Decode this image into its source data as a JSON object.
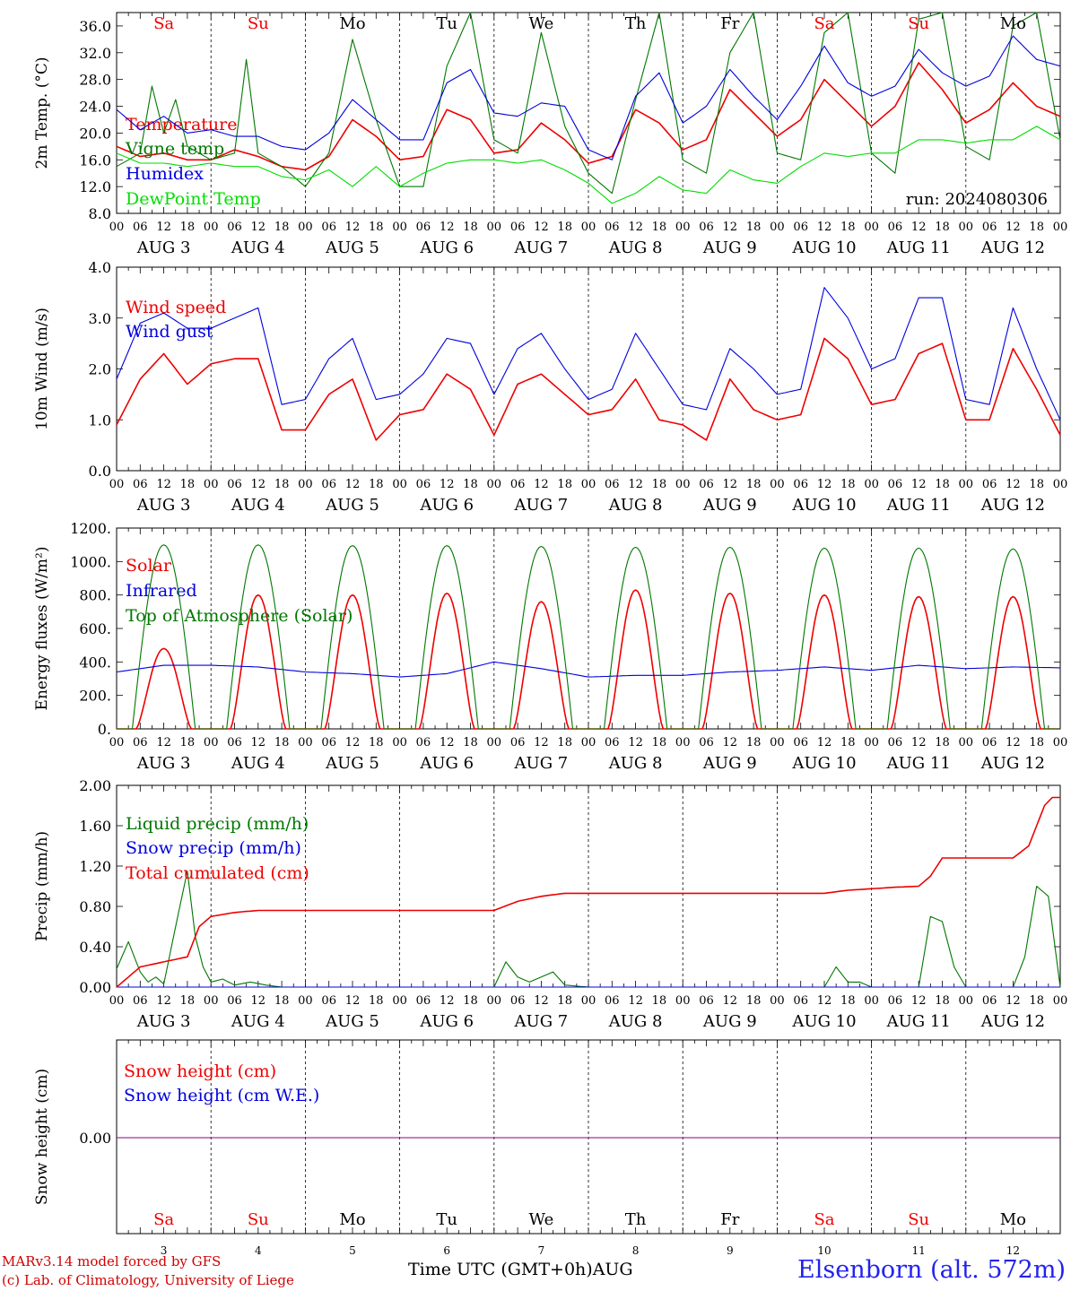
{
  "colors": {
    "red": "#ee0000",
    "green": "#007700",
    "blue": "#0000dd",
    "lightgreen": "#00dd00",
    "purple": "#880088",
    "black": "#000000"
  },
  "days": [
    {
      "name": "Sa",
      "color": "#ee0000",
      "label": "AUG  3",
      "num": "3"
    },
    {
      "name": "Su",
      "color": "#ee0000",
      "label": "AUG  4",
      "num": "4"
    },
    {
      "name": "Mo",
      "color": "#000000",
      "label": "AUG  5",
      "num": "5"
    },
    {
      "name": "Tu",
      "color": "#000000",
      "label": "AUG  6",
      "num": "6"
    },
    {
      "name": "We",
      "color": "#000000",
      "label": "AUG  7",
      "num": "7"
    },
    {
      "name": "Th",
      "color": "#000000",
      "label": "AUG  8",
      "num": "8"
    },
    {
      "name": "Fr",
      "color": "#000000",
      "label": "AUG  9",
      "num": "9"
    },
    {
      "name": "Sa",
      "color": "#ee0000",
      "label": "AUG 10",
      "num": "10"
    },
    {
      "name": "Su",
      "color": "#ee0000",
      "label": "AUG 11",
      "num": "11"
    },
    {
      "name": "Mo",
      "color": "#000000",
      "label": "AUG 12",
      "num": "12"
    }
  ],
  "hour_ticks": [
    "00",
    "06",
    "12",
    "18"
  ],
  "final_hour_tick": "00",
  "footer": {
    "model": "MARv3.14 model forced by GFS",
    "copyright": "(c) Lab. of Climatology, University of Liege",
    "xlabel": "Time UTC (GMT+0h)",
    "xunit": "AUG",
    "station": "Elsenborn (alt. 572m)"
  },
  "chart_data": [
    {
      "type": "line",
      "ylabel": "2m Temp. (°C)",
      "ylim": [
        8,
        38
      ],
      "yticks": [
        "8.0",
        "12.0",
        "16.0",
        "20.0",
        "24.0",
        "28.0",
        "32.0",
        "36.0"
      ],
      "annotation": "run: 2024080306",
      "x_unit": "hours since AUG 3 00 UTC",
      "series": [
        {
          "name": "Temperature",
          "color": "#ee0000",
          "x": [
            0,
            6,
            12,
            18,
            24,
            30,
            36,
            42,
            48,
            54,
            60,
            66,
            72,
            78,
            84,
            90,
            96,
            102,
            108,
            114,
            120,
            126,
            132,
            138,
            144,
            150,
            156,
            162,
            168,
            174,
            180,
            186,
            192,
            198,
            204,
            210,
            216,
            222,
            228,
            234,
            240
          ],
          "y": [
            18,
            16.5,
            17,
            16,
            16,
            17.5,
            16.5,
            15,
            14.5,
            16.5,
            22,
            19.5,
            16,
            16.5,
            23.5,
            22,
            17,
            17.5,
            21.5,
            19,
            15.5,
            16.5,
            23.5,
            21.5,
            17.5,
            19,
            26.5,
            23,
            19.5,
            22,
            28,
            24.5,
            21,
            24,
            30.5,
            26.5,
            21.5,
            23.5,
            27.5,
            24,
            22.5
          ]
        },
        {
          "name": "Vigne temp",
          "color": "#007700",
          "x": [
            0,
            6,
            9,
            12,
            15,
            18,
            24,
            30,
            33,
            36,
            42,
            48,
            54,
            60,
            66,
            72,
            78,
            84,
            90,
            96,
            102,
            108,
            114,
            120,
            126,
            132,
            138,
            144,
            150,
            156,
            162,
            168,
            174,
            180,
            186,
            192,
            198,
            204,
            210,
            216,
            222,
            228,
            234,
            240
          ],
          "y": [
            15,
            17,
            27,
            20,
            25,
            18,
            16,
            17,
            31,
            17,
            15,
            12,
            17,
            34,
            22,
            12,
            12,
            30,
            38,
            19,
            17,
            35,
            21,
            14,
            11,
            25,
            38,
            16,
            14,
            32,
            38,
            17,
            16,
            35,
            38,
            17,
            14,
            37,
            38,
            18,
            16,
            36,
            38,
            19
          ]
        },
        {
          "name": "Humidex",
          "color": "#0000dd",
          "x": [
            0,
            6,
            12,
            18,
            24,
            30,
            36,
            42,
            48,
            54,
            60,
            66,
            72,
            78,
            84,
            90,
            96,
            102,
            108,
            114,
            120,
            126,
            132,
            138,
            144,
            150,
            156,
            162,
            168,
            174,
            180,
            186,
            192,
            198,
            204,
            210,
            216,
            222,
            228,
            234,
            240
          ],
          "y": [
            23.5,
            20.5,
            22.5,
            20,
            20.5,
            19.5,
            19.5,
            18,
            17.5,
            20,
            25,
            22,
            19,
            19,
            27.5,
            29.5,
            23,
            22.5,
            24.5,
            24,
            17.5,
            16,
            25.5,
            29,
            21.5,
            24,
            29.5,
            25.5,
            22,
            27,
            33,
            27.5,
            25.5,
            27,
            32.5,
            29,
            27,
            28.5,
            34.5,
            31,
            30
          ]
        },
        {
          "name": "DewPoint Temp",
          "color": "#00dd00",
          "x": [
            0,
            6,
            12,
            18,
            24,
            30,
            36,
            42,
            48,
            54,
            60,
            66,
            72,
            78,
            84,
            90,
            96,
            102,
            108,
            114,
            120,
            126,
            132,
            138,
            144,
            150,
            156,
            162,
            168,
            174,
            180,
            186,
            192,
            198,
            204,
            210,
            216,
            222,
            228,
            234,
            240
          ],
          "y": [
            17,
            15.5,
            15.5,
            15,
            15.5,
            15,
            15,
            13.5,
            13,
            14.5,
            12,
            15,
            12,
            14,
            15.5,
            16,
            16,
            15.5,
            16,
            14.5,
            12.5,
            9.5,
            11,
            13.5,
            11.5,
            11,
            14.5,
            13,
            12.5,
            15,
            17,
            16.5,
            17,
            17,
            19,
            19,
            18.5,
            19,
            19,
            21,
            19
          ]
        }
      ]
    },
    {
      "type": "line",
      "ylabel": "10m Wind (m/s)",
      "ylim": [
        0,
        4
      ],
      "yticks": [
        "0.0",
        "1.0",
        "2.0",
        "3.0",
        "4.0"
      ],
      "x_unit": "hours since AUG 3 00 UTC",
      "series": [
        {
          "name": "Wind speed",
          "color": "#ee0000",
          "x": [
            0,
            6,
            12,
            18,
            24,
            30,
            36,
            42,
            48,
            54,
            60,
            66,
            72,
            78,
            84,
            90,
            96,
            102,
            108,
            114,
            120,
            126,
            132,
            138,
            144,
            150,
            156,
            162,
            168,
            174,
            180,
            186,
            192,
            198,
            204,
            210,
            216,
            222,
            228,
            234,
            240
          ],
          "y": [
            0.9,
            1.8,
            2.3,
            1.7,
            2.1,
            2.2,
            2.2,
            0.8,
            0.8,
            1.5,
            1.8,
            0.6,
            1.1,
            1.2,
            1.9,
            1.6,
            0.7,
            1.7,
            1.9,
            1.5,
            1.1,
            1.2,
            1.8,
            1.0,
            0.9,
            0.6,
            1.8,
            1.2,
            1.0,
            1.1,
            2.6,
            2.2,
            1.3,
            1.4,
            2.3,
            2.5,
            1.0,
            1.0,
            2.4,
            1.6,
            0.7
          ]
        },
        {
          "name": "Wind gust",
          "color": "#0000dd",
          "x": [
            0,
            6,
            12,
            18,
            24,
            30,
            36,
            42,
            48,
            54,
            60,
            66,
            72,
            78,
            84,
            90,
            96,
            102,
            108,
            114,
            120,
            126,
            132,
            138,
            144,
            150,
            156,
            162,
            168,
            174,
            180,
            186,
            192,
            198,
            204,
            210,
            216,
            222,
            228,
            234,
            240
          ],
          "y": [
            1.8,
            2.9,
            3.1,
            2.8,
            2.8,
            3.0,
            3.2,
            1.3,
            1.4,
            2.2,
            2.6,
            1.4,
            1.5,
            1.9,
            2.6,
            2.5,
            1.5,
            2.4,
            2.7,
            2.0,
            1.4,
            1.6,
            2.7,
            2.0,
            1.3,
            1.2,
            2.4,
            2.0,
            1.5,
            1.6,
            3.6,
            3.0,
            2.0,
            2.2,
            3.4,
            3.4,
            1.4,
            1.3,
            3.2,
            2.0,
            1.0
          ]
        }
      ]
    },
    {
      "type": "line",
      "ylabel": "Energy fluxes (W/m²)",
      "ylim": [
        0,
        1200
      ],
      "yticks": [
        "0.",
        "200.",
        "400.",
        "600.",
        "800.",
        "1000.",
        "1200."
      ],
      "x_unit": "hours since AUG 3 00 UTC",
      "series": [
        {
          "name": "Solar",
          "color": "#ee0000",
          "day_peaks": [
            480,
            800,
            800,
            810,
            760,
            830,
            810,
            800,
            790,
            790
          ]
        },
        {
          "name": "Infrared",
          "color": "#0000dd",
          "x": [
            0,
            12,
            24,
            36,
            48,
            60,
            72,
            84,
            96,
            108,
            120,
            132,
            144,
            156,
            168,
            180,
            192,
            204,
            216,
            228,
            240
          ],
          "y": [
            340,
            380,
            380,
            370,
            340,
            330,
            310,
            330,
            400,
            360,
            310,
            320,
            320,
            340,
            350,
            370,
            350,
            380,
            360,
            370,
            365
          ]
        },
        {
          "name": "Top of Atmosphere (Solar)",
          "color": "#007700",
          "day_peaks": [
            1100,
            1100,
            1095,
            1095,
            1090,
            1085,
            1085,
            1080,
            1080,
            1075
          ]
        }
      ]
    },
    {
      "type": "line",
      "ylabel": "Precip (mm/h)",
      "ylim": [
        0,
        2
      ],
      "yticks": [
        "0.00",
        "0.40",
        "0.80",
        "1.20",
        "1.60",
        "2.00"
      ],
      "x_unit": "hours since AUG 3 00 UTC",
      "series": [
        {
          "name": "Liquid precip (mm/h)",
          "color": "#007700",
          "x": [
            0,
            3,
            6,
            8,
            10,
            12,
            15,
            18,
            20,
            22,
            24,
            27,
            30,
            34,
            38,
            42,
            48,
            96,
            99,
            102,
            105,
            108,
            111,
            114,
            120,
            180,
            183,
            186,
            189,
            192,
            204,
            207,
            210,
            213,
            216,
            228,
            231,
            234,
            237,
            240
          ],
          "y": [
            0.18,
            0.45,
            0.15,
            0.05,
            0.1,
            0.03,
            0.6,
            1.15,
            0.5,
            0.2,
            0.05,
            0.08,
            0.02,
            0.05,
            0.02,
            0,
            0,
            0,
            0.25,
            0.1,
            0.05,
            0.1,
            0.15,
            0.02,
            0,
            0,
            0.2,
            0.05,
            0.05,
            0,
            0,
            0.7,
            0.65,
            0.2,
            0,
            0,
            0.3,
            1.0,
            0.9,
            0
          ]
        },
        {
          "name": "Snow precip (mm/h)",
          "color": "#0000dd",
          "x": [
            0,
            240
          ],
          "y": [
            0,
            0
          ]
        },
        {
          "name": "Total cumulated (cm)",
          "color": "#ee0000",
          "x": [
            0,
            6,
            12,
            18,
            21,
            24,
            30,
            36,
            96,
            102,
            108,
            114,
            150,
            180,
            186,
            198,
            204,
            207,
            210,
            216,
            222,
            228,
            232,
            234,
            236,
            238,
            240
          ],
          "y": [
            0,
            0.2,
            0.25,
            0.3,
            0.6,
            0.7,
            0.74,
            0.76,
            0.76,
            0.85,
            0.9,
            0.93,
            0.93,
            0.93,
            0.96,
            0.99,
            1.0,
            1.1,
            1.28,
            1.28,
            1.28,
            1.28,
            1.4,
            1.6,
            1.8,
            1.88,
            1.88
          ]
        }
      ]
    },
    {
      "type": "line",
      "ylabel": "Snow height (cm)",
      "yticks": [
        "0.00"
      ],
      "x_unit": "hours since AUG 3 00 UTC",
      "series": [
        {
          "name": "Snow height (cm)",
          "color": "#ee0000",
          "x": [
            0,
            240
          ],
          "y": [
            0,
            0
          ]
        },
        {
          "name": "Snow height (cm W.E.)",
          "color": "#0000dd",
          "x": [
            0,
            240
          ],
          "y": [
            0,
            0
          ]
        }
      ]
    }
  ]
}
